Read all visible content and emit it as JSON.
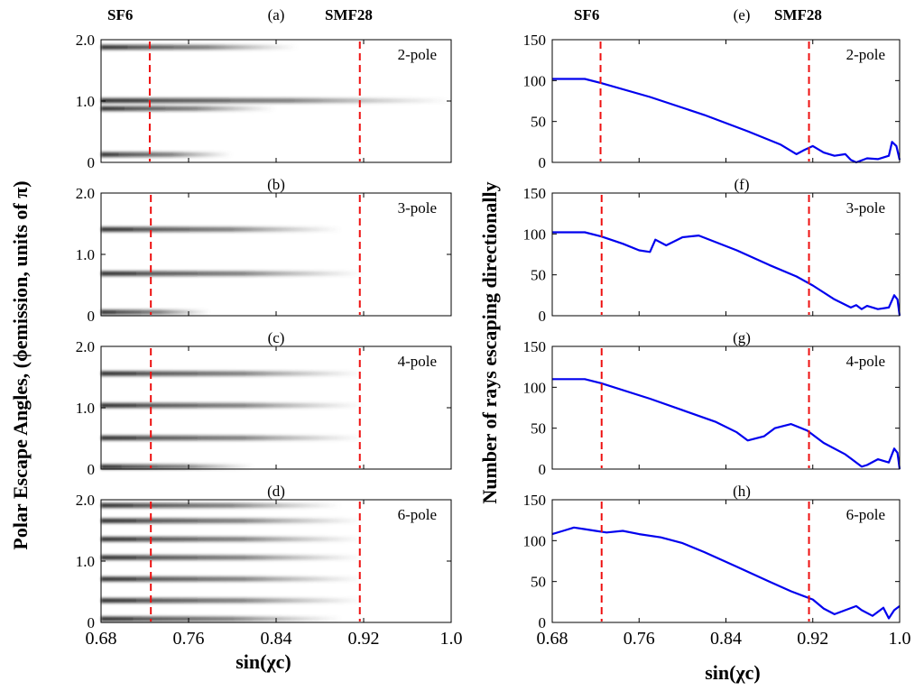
{
  "figure": {
    "x_axis_label": "sin(χc)",
    "x_ticks": [
      "0.68",
      "0.76",
      "0.84",
      "0.92",
      "1.0"
    ],
    "left_y_label": "Polar Escape Angles, (ϕemission, units of π)",
    "right_y_label": "Number of rays escaping directionally",
    "fiber_markers": [
      {
        "name": "SF6"
      },
      {
        "name": "SMF28"
      }
    ]
  },
  "chart_data": [
    {
      "id": "a",
      "panel_label": "(a)",
      "pole_label": "2-pole",
      "type": "heatmap",
      "xlim": [
        0.68,
        1.0
      ],
      "ylim": [
        0,
        2.0
      ],
      "y_ticks": [
        "0",
        "1.0",
        "2.0"
      ],
      "bands": [
        {
          "y": 1.87,
          "end": 0.86
        },
        {
          "y": 0.87,
          "end": 0.84
        },
        {
          "y": 0.12,
          "end": 0.8
        },
        {
          "y": 1.0,
          "end": 1.0
        }
      ],
      "markers": {
        "SF6": 0.7245,
        "SMF28": 0.9165
      }
    },
    {
      "id": "b",
      "panel_label": "(b)",
      "pole_label": "3-pole",
      "type": "heatmap",
      "xlim": [
        0.68,
        1.0
      ],
      "ylim": [
        0,
        2.0
      ],
      "y_ticks": [
        "0",
        "1.0",
        "2.0"
      ],
      "bands": [
        {
          "y": 1.4,
          "end": 0.9
        },
        {
          "y": 0.68,
          "end": 0.92
        },
        {
          "y": 0.05,
          "end": 0.78
        }
      ],
      "markers": {
        "SF6": 0.7255,
        "SMF28": 0.9165
      }
    },
    {
      "id": "c",
      "panel_label": "(c)",
      "pole_label": "4-pole",
      "type": "heatmap",
      "xlim": [
        0.68,
        1.0
      ],
      "ylim": [
        0,
        2.0
      ],
      "y_ticks": [
        "0",
        "1.0",
        "2.0"
      ],
      "bands": [
        {
          "y": 1.55,
          "end": 0.92
        },
        {
          "y": 1.03,
          "end": 0.92
        },
        {
          "y": 0.5,
          "end": 0.92
        },
        {
          "y": 0.03,
          "end": 0.82
        }
      ],
      "markers": {
        "SF6": 0.7255,
        "SMF28": 0.9165
      }
    },
    {
      "id": "d",
      "panel_label": "(d)",
      "pole_label": "6-pole",
      "type": "heatmap",
      "xlim": [
        0.68,
        1.0
      ],
      "ylim": [
        0,
        2.0
      ],
      "y_ticks": [
        "0",
        "1.0",
        "2.0"
      ],
      "bands": [
        {
          "y": 1.9,
          "end": 0.9
        },
        {
          "y": 1.65,
          "end": 0.92
        },
        {
          "y": 1.35,
          "end": 0.92
        },
        {
          "y": 1.05,
          "end": 0.92
        },
        {
          "y": 0.7,
          "end": 0.92
        },
        {
          "y": 0.35,
          "end": 0.92
        },
        {
          "y": 0.05,
          "end": 0.9
        }
      ],
      "markers": {
        "SF6": 0.7255,
        "SMF28": 0.9165
      }
    },
    {
      "id": "e",
      "panel_label": "(e)",
      "pole_label": "2-pole",
      "type": "line",
      "xlim": [
        0.68,
        1.0
      ],
      "ylim": [
        0,
        150
      ],
      "y_ticks": [
        "0",
        "50",
        "100",
        "150"
      ],
      "x": [
        0.68,
        0.71,
        0.725,
        0.77,
        0.82,
        0.86,
        0.89,
        0.905,
        0.912,
        0.92,
        0.93,
        0.94,
        0.95,
        0.955,
        0.96,
        0.97,
        0.98,
        0.99,
        0.993,
        0.997,
        1.0
      ],
      "y": [
        102,
        102,
        97,
        80,
        58,
        38,
        22,
        10,
        15,
        20,
        12,
        8,
        10,
        3,
        0,
        5,
        4,
        8,
        25,
        20,
        3
      ],
      "markers": {
        "SF6": 0.7245,
        "SMF28": 0.9165
      }
    },
    {
      "id": "f",
      "panel_label": "(f)",
      "pole_label": "3-pole",
      "type": "line",
      "xlim": [
        0.68,
        1.0
      ],
      "ylim": [
        0,
        150
      ],
      "y_ticks": [
        "0",
        "50",
        "100",
        "150"
      ],
      "x": [
        0.68,
        0.71,
        0.725,
        0.745,
        0.76,
        0.77,
        0.775,
        0.785,
        0.8,
        0.815,
        0.85,
        0.88,
        0.905,
        0.92,
        0.94,
        0.955,
        0.96,
        0.965,
        0.97,
        0.98,
        0.99,
        0.995,
        0.998,
        1.0
      ],
      "y": [
        102,
        102,
        97,
        88,
        80,
        78,
        93,
        86,
        96,
        98,
        80,
        62,
        48,
        37,
        20,
        10,
        13,
        8,
        12,
        8,
        10,
        25,
        20,
        0
      ],
      "markers": {
        "SF6": 0.7255,
        "SMF28": 0.9165
      }
    },
    {
      "id": "g",
      "panel_label": "(g)",
      "pole_label": "4-pole",
      "type": "line",
      "xlim": [
        0.68,
        1.0
      ],
      "ylim": [
        0,
        150
      ],
      "y_ticks": [
        "0",
        "50",
        "100",
        "150"
      ],
      "x": [
        0.68,
        0.71,
        0.725,
        0.77,
        0.8,
        0.83,
        0.85,
        0.86,
        0.875,
        0.885,
        0.9,
        0.915,
        0.93,
        0.95,
        0.96,
        0.965,
        0.97,
        0.98,
        0.99,
        0.995,
        0.998,
        1.0
      ],
      "y": [
        110,
        110,
        105,
        86,
        72,
        58,
        45,
        35,
        40,
        50,
        55,
        47,
        32,
        18,
        8,
        3,
        5,
        12,
        8,
        25,
        20,
        0
      ],
      "markers": {
        "SF6": 0.7255,
        "SMF28": 0.9165
      }
    },
    {
      "id": "h",
      "panel_label": "(h)",
      "pole_label": "6-pole",
      "type": "line",
      "xlim": [
        0.68,
        1.0
      ],
      "ylim": [
        0,
        150
      ],
      "y_ticks": [
        "0",
        "50",
        "100",
        "150"
      ],
      "x": [
        0.68,
        0.69,
        0.7,
        0.71,
        0.72,
        0.73,
        0.745,
        0.76,
        0.78,
        0.8,
        0.82,
        0.85,
        0.88,
        0.9,
        0.92,
        0.93,
        0.94,
        0.96,
        0.965,
        0.975,
        0.985,
        0.99,
        0.995,
        1.0
      ],
      "y": [
        108,
        112,
        116,
        114,
        112,
        110,
        112,
        108,
        104,
        97,
        86,
        68,
        50,
        38,
        28,
        17,
        10,
        20,
        15,
        8,
        18,
        5,
        15,
        20
      ],
      "markers": {
        "SF6": 0.7255,
        "SMF28": 0.9165
      }
    }
  ],
  "colors": {
    "curve": "#0000ee",
    "marker": "#ee1111",
    "axis": "#000000"
  }
}
